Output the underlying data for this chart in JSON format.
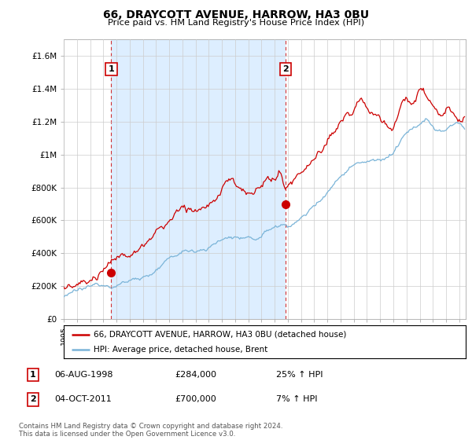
{
  "title": "66, DRAYCOTT AVENUE, HARROW, HA3 0BU",
  "subtitle": "Price paid vs. HM Land Registry's House Price Index (HPI)",
  "ylabel_ticks": [
    "£0",
    "£200K",
    "£400K",
    "£600K",
    "£800K",
    "£1M",
    "£1.2M",
    "£1.4M",
    "£1.6M"
  ],
  "ytick_values": [
    0,
    200000,
    400000,
    600000,
    800000,
    1000000,
    1200000,
    1400000,
    1600000
  ],
  "ylim": [
    0,
    1700000
  ],
  "xlim_start": 1995.0,
  "xlim_end": 2025.5,
  "hpi_color": "#7ab4d8",
  "price_color": "#cc0000",
  "shade_color": "#ddeeff",
  "sale1_x": 1998.6,
  "sale1_y": 284000,
  "sale2_x": 2011.83,
  "sale2_y": 700000,
  "legend_line1": "66, DRAYCOTT AVENUE, HARROW, HA3 0BU (detached house)",
  "legend_line2": "HPI: Average price, detached house, Brent",
  "table_row1": [
    "1",
    "06-AUG-1998",
    "£284,000",
    "25% ↑ HPI"
  ],
  "table_row2": [
    "2",
    "04-OCT-2011",
    "£700,000",
    "7% ↑ HPI"
  ],
  "footnote": "Contains HM Land Registry data © Crown copyright and database right 2024.\nThis data is licensed under the Open Government Licence v3.0.",
  "background_color": "#ffffff",
  "grid_color": "#cccccc"
}
